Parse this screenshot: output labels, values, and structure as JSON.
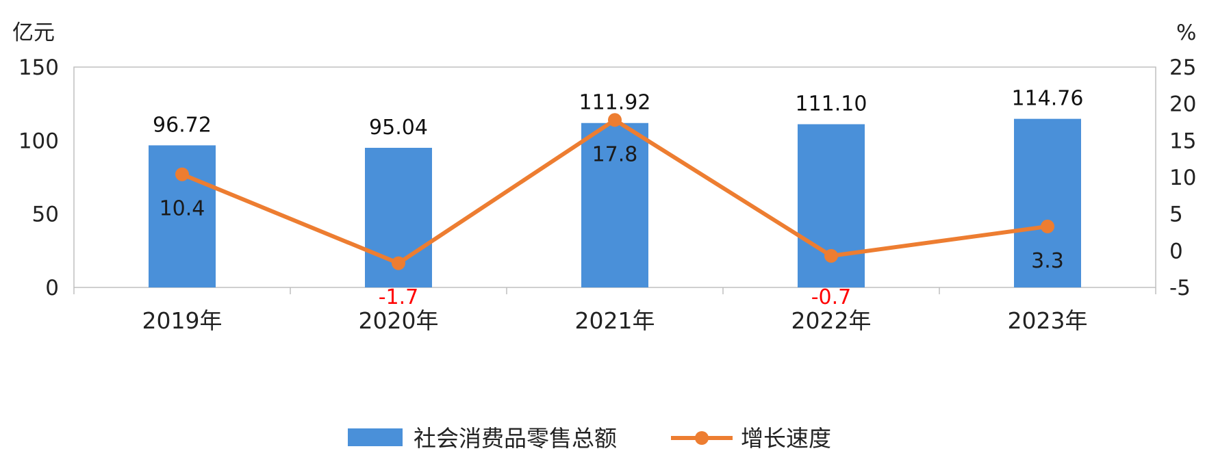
{
  "chart_data": {
    "type": "bar",
    "categories": [
      "2019年",
      "2020年",
      "2021年",
      "2022年",
      "2023年"
    ],
    "series": [
      {
        "name": "社会消费品零售总额",
        "type": "bar",
        "axis": "left",
        "values": [
          96.72,
          95.04,
          111.92,
          111.1,
          114.76
        ],
        "labels": [
          "96.72",
          "95.04",
          "111.92",
          "111.10",
          "114.76"
        ],
        "color": "#4a90d9"
      },
      {
        "name": "增长速度",
        "type": "line",
        "axis": "right",
        "values": [
          10.4,
          -1.7,
          17.8,
          -0.7,
          3.3
        ],
        "labels": [
          "10.4",
          "-1.7",
          "17.8",
          "-0.7",
          "3.3"
        ],
        "color": "#ed7d31"
      }
    ],
    "left_axis": {
      "unit": "亿元",
      "min": 0,
      "max": 150,
      "ticks": [
        "0",
        "50",
        "100",
        "150"
      ]
    },
    "right_axis": {
      "unit": "%",
      "min": -5,
      "max": 25,
      "ticks": [
        "-5",
        "0",
        "5",
        "10",
        "15",
        "20",
        "25"
      ]
    },
    "negative_label_color": "#ff0000",
    "positive_label_color": "#1a1a1a",
    "grid": false,
    "legend_position": "bottom"
  }
}
